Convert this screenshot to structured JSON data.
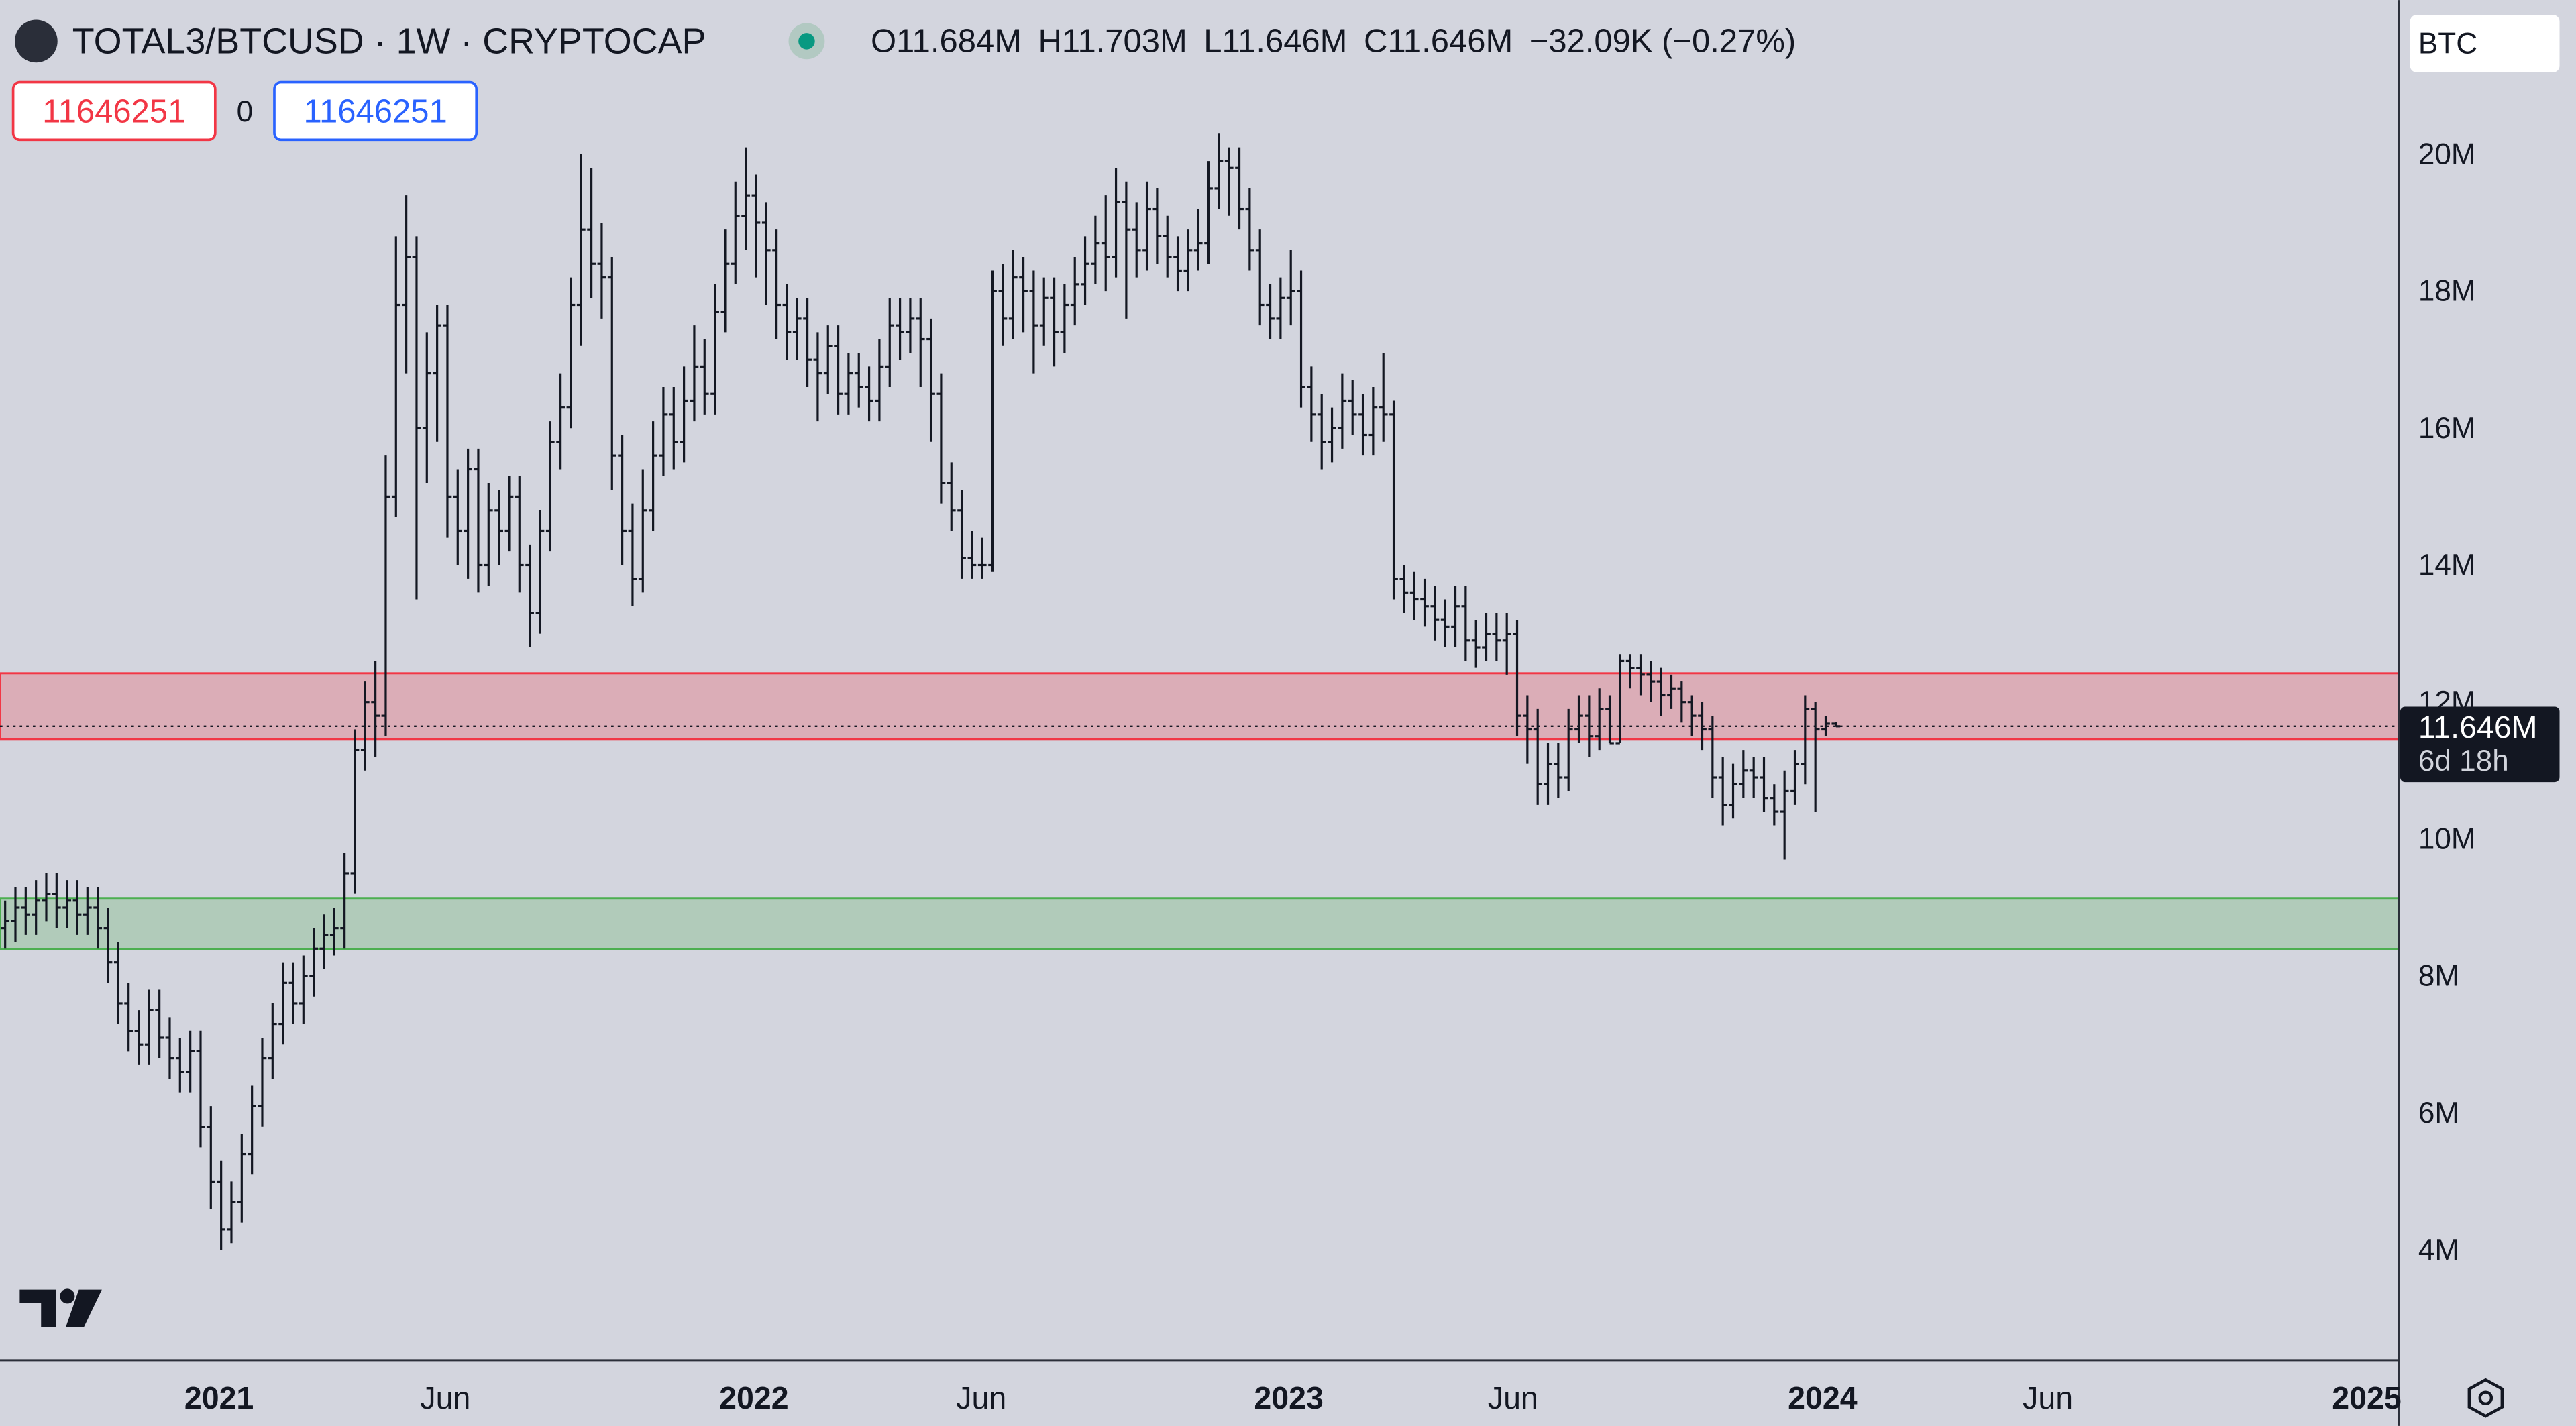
{
  "header": {
    "symbol": "TOTAL3/BTCUSD · 1W · CRYPTOCAP",
    "readout": [
      {
        "label": "O",
        "value": "11.684M"
      },
      {
        "label": "H",
        "value": "11.703M"
      },
      {
        "label": "L",
        "value": "11.646M"
      },
      {
        "label": "C",
        "value": "11.646M"
      }
    ],
    "change": "−32.09K (−0.27%)"
  },
  "boxes": {
    "sell": "11646251",
    "spread": "0",
    "buy": "11646251"
  },
  "currency": "BTC",
  "price_label": {
    "price": "11.646M",
    "countdown": "6d 18h"
  },
  "chart_data": {
    "type": "ohlc",
    "color": "#131722",
    "xlim": [
      -0.5,
      232.7
    ],
    "xticks": [
      {
        "value": 20.8,
        "label": "2021"
      },
      {
        "value": 42.8,
        "label": "Jun"
      },
      {
        "value": 72.8,
        "label": "2022"
      },
      {
        "value": 94.9,
        "label": "Jun"
      },
      {
        "value": 124.8,
        "label": "2023"
      },
      {
        "value": 146.6,
        "label": "Jun"
      },
      {
        "value": 176.7,
        "label": "2024"
      },
      {
        "value": 198.6,
        "label": "Jun"
      },
      {
        "value": 229.6,
        "label": "2025"
      }
    ],
    "ylim": [
      2.39,
      22.25
    ],
    "yticks": [
      {
        "value": 4,
        "label": "4M"
      },
      {
        "value": 6,
        "label": "6M"
      },
      {
        "value": 8,
        "label": "8M"
      },
      {
        "value": 10,
        "label": "10M"
      },
      {
        "value": 12,
        "label": "12M"
      },
      {
        "value": 14,
        "label": "14M"
      },
      {
        "value": 16,
        "label": "16M"
      },
      {
        "value": 18,
        "label": "18M"
      },
      {
        "value": 20,
        "label": "20M"
      }
    ],
    "zones": [
      {
        "ylim": [
          11.46,
          12.42
        ],
        "color": "#f23645"
      },
      {
        "ylim": [
          8.39,
          9.13
        ],
        "color": "#4caf50"
      }
    ],
    "ohlc": [
      [
        8.7,
        9.1,
        8.4,
        8.8
      ],
      [
        8.8,
        9.3,
        8.5,
        9.0
      ],
      [
        9.0,
        9.3,
        8.6,
        8.9
      ],
      [
        8.9,
        9.4,
        8.6,
        9.1
      ],
      [
        9.1,
        9.5,
        8.8,
        9.2
      ],
      [
        9.2,
        9.5,
        8.7,
        9.0
      ],
      [
        9.0,
        9.4,
        8.7,
        9.1
      ],
      [
        9.1,
        9.4,
        8.6,
        8.9
      ],
      [
        8.9,
        9.3,
        8.6,
        9.0
      ],
      [
        9.0,
        9.3,
        8.4,
        8.7
      ],
      [
        8.7,
        9.0,
        7.9,
        8.2
      ],
      [
        8.2,
        8.5,
        7.3,
        7.6
      ],
      [
        7.6,
        7.9,
        6.9,
        7.2
      ],
      [
        7.2,
        7.5,
        6.7,
        7.0
      ],
      [
        7.0,
        7.8,
        6.7,
        7.5
      ],
      [
        7.5,
        7.8,
        6.8,
        7.1
      ],
      [
        7.1,
        7.4,
        6.5,
        6.8
      ],
      [
        6.8,
        7.1,
        6.3,
        6.6
      ],
      [
        6.6,
        7.2,
        6.3,
        6.9
      ],
      [
        6.9,
        7.2,
        5.5,
        5.8
      ],
      [
        5.8,
        6.1,
        4.6,
        5.0
      ],
      [
        5.0,
        5.3,
        4.0,
        4.3
      ],
      [
        4.3,
        5.0,
        4.1,
        4.7
      ],
      [
        4.7,
        5.7,
        4.4,
        5.4
      ],
      [
        5.4,
        6.4,
        5.1,
        6.1
      ],
      [
        6.1,
        7.1,
        5.8,
        6.8
      ],
      [
        6.8,
        7.6,
        6.5,
        7.3
      ],
      [
        7.3,
        8.2,
        7.0,
        7.9
      ],
      [
        7.9,
        8.2,
        7.3,
        7.6
      ],
      [
        7.6,
        8.3,
        7.3,
        8.0
      ],
      [
        8.0,
        8.7,
        7.7,
        8.4
      ],
      [
        8.4,
        8.9,
        8.1,
        8.6
      ],
      [
        8.6,
        9.0,
        8.3,
        8.7
      ],
      [
        8.7,
        9.8,
        8.4,
        9.5
      ],
      [
        9.5,
        11.6,
        9.2,
        11.3
      ],
      [
        11.3,
        12.3,
        11.0,
        12.0
      ],
      [
        12.0,
        12.6,
        11.2,
        11.8
      ],
      [
        11.8,
        15.6,
        11.5,
        15.0
      ],
      [
        15.0,
        18.8,
        14.7,
        17.8
      ],
      [
        17.8,
        19.4,
        16.8,
        18.5
      ],
      [
        18.5,
        18.8,
        13.5,
        16.0
      ],
      [
        16.0,
        17.4,
        15.2,
        16.8
      ],
      [
        16.8,
        17.8,
        15.8,
        17.5
      ],
      [
        17.5,
        17.8,
        14.4,
        15.0
      ],
      [
        15.0,
        15.4,
        14.0,
        14.5
      ],
      [
        14.5,
        15.7,
        13.8,
        15.4
      ],
      [
        15.4,
        15.7,
        13.6,
        14.0
      ],
      [
        14.0,
        15.2,
        13.7,
        14.8
      ],
      [
        14.8,
        15.1,
        14.0,
        14.5
      ],
      [
        14.5,
        15.3,
        14.2,
        15.0
      ],
      [
        15.0,
        15.3,
        13.6,
        14.0
      ],
      [
        14.0,
        14.3,
        12.8,
        13.3
      ],
      [
        13.3,
        14.8,
        13.0,
        14.5
      ],
      [
        14.5,
        16.1,
        14.2,
        15.8
      ],
      [
        15.8,
        16.8,
        15.4,
        16.3
      ],
      [
        16.3,
        18.2,
        16.0,
        17.8
      ],
      [
        17.8,
        20.0,
        17.2,
        18.9
      ],
      [
        18.9,
        19.8,
        17.9,
        18.4
      ],
      [
        18.4,
        19.0,
        17.6,
        18.2
      ],
      [
        18.2,
        18.5,
        15.1,
        15.6
      ],
      [
        15.6,
        15.9,
        14.0,
        14.5
      ],
      [
        14.5,
        14.9,
        13.4,
        13.8
      ],
      [
        13.8,
        15.4,
        13.6,
        14.8
      ],
      [
        14.8,
        16.1,
        14.5,
        15.6
      ],
      [
        15.6,
        16.6,
        15.3,
        16.2
      ],
      [
        16.2,
        16.6,
        15.4,
        15.8
      ],
      [
        15.8,
        16.9,
        15.5,
        16.4
      ],
      [
        16.4,
        17.5,
        16.1,
        16.9
      ],
      [
        16.9,
        17.3,
        16.2,
        16.5
      ],
      [
        16.5,
        18.1,
        16.2,
        17.7
      ],
      [
        17.7,
        18.9,
        17.4,
        18.4
      ],
      [
        18.4,
        19.6,
        18.1,
        19.1
      ],
      [
        19.1,
        20.1,
        18.6,
        19.4
      ],
      [
        19.4,
        19.7,
        18.2,
        19.0
      ],
      [
        19.0,
        19.3,
        17.8,
        18.6
      ],
      [
        18.6,
        18.9,
        17.3,
        17.8
      ],
      [
        17.8,
        18.1,
        17.0,
        17.4
      ],
      [
        17.4,
        17.9,
        17.0,
        17.6
      ],
      [
        17.6,
        17.9,
        16.6,
        17.0
      ],
      [
        17.0,
        17.4,
        16.1,
        16.8
      ],
      [
        16.8,
        17.5,
        16.5,
        17.2
      ],
      [
        17.2,
        17.5,
        16.2,
        16.5
      ],
      [
        16.5,
        17.1,
        16.2,
        16.8
      ],
      [
        16.8,
        17.1,
        16.3,
        16.6
      ],
      [
        16.6,
        16.9,
        16.1,
        16.4
      ],
      [
        16.4,
        17.3,
        16.1,
        16.9
      ],
      [
        16.9,
        17.9,
        16.6,
        17.5
      ],
      [
        17.5,
        17.9,
        17.0,
        17.4
      ],
      [
        17.4,
        17.9,
        17.1,
        17.6
      ],
      [
        17.6,
        17.9,
        16.6,
        17.3
      ],
      [
        17.3,
        17.6,
        15.8,
        16.5
      ],
      [
        16.5,
        16.8,
        14.9,
        15.2
      ],
      [
        15.2,
        15.5,
        14.5,
        14.8
      ],
      [
        14.8,
        15.1,
        13.8,
        14.1
      ],
      [
        14.1,
        14.5,
        13.8,
        14.0
      ],
      [
        14.0,
        14.4,
        13.8,
        14.0
      ],
      [
        14.0,
        18.3,
        13.9,
        18.0
      ],
      [
        18.0,
        18.4,
        17.2,
        17.6
      ],
      [
        17.6,
        18.6,
        17.3,
        18.2
      ],
      [
        18.2,
        18.5,
        17.4,
        18.0
      ],
      [
        18.0,
        18.3,
        16.8,
        17.5
      ],
      [
        17.5,
        18.2,
        17.2,
        17.9
      ],
      [
        17.9,
        18.2,
        16.9,
        17.4
      ],
      [
        17.4,
        18.1,
        17.1,
        17.8
      ],
      [
        17.8,
        18.5,
        17.5,
        18.1
      ],
      [
        18.1,
        18.8,
        17.8,
        18.4
      ],
      [
        18.4,
        19.1,
        18.1,
        18.7
      ],
      [
        18.7,
        19.4,
        18.0,
        18.5
      ],
      [
        18.5,
        19.8,
        18.2,
        19.3
      ],
      [
        19.3,
        19.6,
        17.6,
        18.9
      ],
      [
        18.9,
        19.3,
        18.2,
        18.6
      ],
      [
        18.6,
        19.6,
        18.3,
        19.2
      ],
      [
        19.2,
        19.5,
        18.4,
        18.8
      ],
      [
        18.8,
        19.1,
        18.2,
        18.5
      ],
      [
        18.5,
        18.8,
        18.0,
        18.3
      ],
      [
        18.3,
        18.9,
        18.0,
        18.6
      ],
      [
        18.6,
        19.2,
        18.3,
        18.7
      ],
      [
        18.7,
        19.9,
        18.4,
        19.5
      ],
      [
        19.5,
        20.3,
        19.2,
        19.9
      ],
      [
        19.9,
        20.1,
        19.1,
        19.8
      ],
      [
        19.8,
        20.1,
        18.9,
        19.2
      ],
      [
        19.2,
        19.5,
        18.3,
        18.6
      ],
      [
        18.6,
        18.9,
        17.5,
        17.8
      ],
      [
        17.8,
        18.1,
        17.3,
        17.6
      ],
      [
        17.6,
        18.2,
        17.3,
        17.9
      ],
      [
        17.9,
        18.6,
        17.5,
        18.0
      ],
      [
        18.0,
        18.3,
        16.3,
        16.6
      ],
      [
        16.6,
        16.9,
        15.8,
        16.2
      ],
      [
        16.2,
        16.5,
        15.4,
        15.8
      ],
      [
        15.8,
        16.3,
        15.5,
        16.0
      ],
      [
        16.0,
        16.8,
        15.7,
        16.4
      ],
      [
        16.4,
        16.7,
        15.9,
        16.2
      ],
      [
        16.2,
        16.5,
        15.6,
        15.9
      ],
      [
        15.9,
        16.6,
        15.6,
        16.3
      ],
      [
        16.3,
        17.1,
        15.8,
        16.2
      ],
      [
        16.2,
        16.4,
        13.5,
        13.8
      ],
      [
        13.8,
        14.0,
        13.3,
        13.6
      ],
      [
        13.6,
        13.9,
        13.2,
        13.5
      ],
      [
        13.5,
        13.8,
        13.1,
        13.4
      ],
      [
        13.4,
        13.7,
        12.9,
        13.2
      ],
      [
        13.2,
        13.5,
        12.8,
        13.1
      ],
      [
        13.1,
        13.7,
        12.8,
        13.4
      ],
      [
        13.4,
        13.7,
        12.6,
        12.9
      ],
      [
        12.9,
        13.2,
        12.5,
        12.8
      ],
      [
        12.8,
        13.3,
        12.6,
        13.0
      ],
      [
        13.0,
        13.3,
        12.6,
        12.9
      ],
      [
        12.9,
        13.3,
        12.4,
        13.0
      ],
      [
        13.0,
        13.2,
        11.5,
        11.8
      ],
      [
        11.8,
        12.1,
        11.1,
        11.6
      ],
      [
        11.6,
        11.9,
        10.5,
        10.8
      ],
      [
        10.8,
        11.4,
        10.5,
        11.1
      ],
      [
        11.1,
        11.4,
        10.6,
        10.9
      ],
      [
        10.9,
        11.9,
        10.7,
        11.6
      ],
      [
        11.6,
        12.1,
        11.4,
        11.8
      ],
      [
        11.8,
        12.1,
        11.2,
        11.5
      ],
      [
        11.5,
        12.2,
        11.3,
        11.9
      ],
      [
        11.9,
        12.1,
        11.4,
        11.4
      ],
      [
        11.4,
        12.7,
        11.4,
        12.6
      ],
      [
        12.6,
        12.7,
        12.2,
        12.5
      ],
      [
        12.5,
        12.7,
        12.1,
        12.4
      ],
      [
        12.4,
        12.6,
        12.0,
        12.3
      ],
      [
        12.3,
        12.5,
        11.8,
        12.1
      ],
      [
        12.1,
        12.4,
        11.9,
        12.2
      ],
      [
        12.2,
        12.3,
        11.7,
        12.0
      ],
      [
        12.0,
        12.1,
        11.5,
        11.8
      ],
      [
        11.8,
        12.0,
        11.3,
        11.6
      ],
      [
        11.6,
        11.8,
        10.6,
        10.9
      ],
      [
        10.9,
        11.2,
        10.2,
        10.5
      ],
      [
        10.5,
        11.1,
        10.3,
        10.8
      ],
      [
        10.8,
        11.3,
        10.6,
        11.0
      ],
      [
        11.0,
        11.2,
        10.6,
        10.9
      ],
      [
        10.9,
        11.2,
        10.4,
        10.6
      ],
      [
        10.6,
        10.8,
        10.2,
        10.4
      ],
      [
        10.4,
        11.0,
        9.7,
        10.7
      ],
      [
        10.7,
        11.3,
        10.5,
        11.1
      ],
      [
        11.1,
        12.1,
        10.8,
        11.9
      ],
      [
        11.9,
        12.0,
        10.4,
        11.6
      ],
      [
        11.6,
        11.8,
        11.5,
        11.684
      ],
      [
        11.684,
        11.703,
        11.646,
        11.646
      ]
    ]
  }
}
